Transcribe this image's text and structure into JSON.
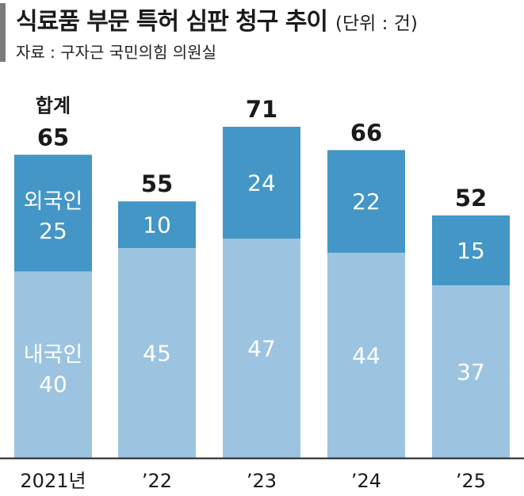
{
  "header": {
    "title": "식료품 부문 특허 심판 청구 추이",
    "unit": "(단위 : 건)",
    "source": "자료 : 구자근 국민의힘 의원실"
  },
  "colors": {
    "domestic": "#9cc4e0",
    "foreign": "#4396c6",
    "accent_bar": "#7a7a7a",
    "axis": "#222222"
  },
  "chart_data": {
    "type": "bar",
    "stacked": true,
    "categories": [
      "2021년",
      "’22",
      "’23",
      "’24",
      "’25"
    ],
    "series": [
      {
        "name": "내국인",
        "values": [
          40,
          45,
          47,
          44,
          37
        ]
      },
      {
        "name": "외국인",
        "values": [
          25,
          10,
          24,
          22,
          15
        ]
      }
    ],
    "totals": [
      65,
      55,
      71,
      66,
      52
    ],
    "total_annotation": "합계",
    "ylim": [
      0,
      71
    ]
  }
}
